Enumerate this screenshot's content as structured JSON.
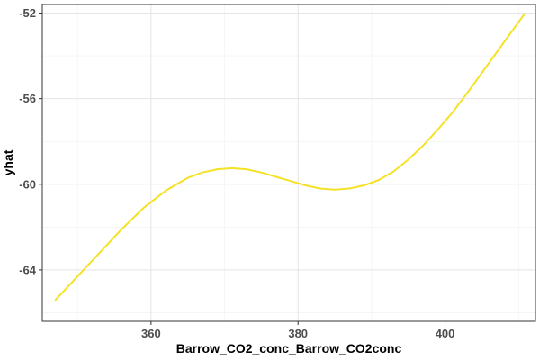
{
  "chart_data": {
    "type": "line",
    "title": "",
    "xlabel": "Barrow_CO2_conc_Barrow_CO2conc",
    "ylabel": "yhat",
    "xlim": [
      345.2,
      412.3
    ],
    "ylim": [
      -66.4,
      -51.6
    ],
    "x_ticks": [
      360,
      380,
      400
    ],
    "y_ticks": [
      -64,
      -60,
      -56,
      -52
    ],
    "x_minor_ticks": [
      350,
      370,
      390,
      410
    ],
    "y_minor_ticks": [
      -66,
      -62,
      -58,
      -54
    ],
    "grid": true,
    "line_color": "#f5e125",
    "series": [
      {
        "x": [
          347.0,
          350.0,
          353.0,
          356.0,
          359.0,
          362.0,
          365.0,
          367.0,
          369.0,
          371.0,
          373.0,
          375.0,
          377.0,
          379.0,
          381.0,
          383.0,
          385.0,
          387.0,
          389.0,
          391.0,
          393.0,
          395.0,
          397.0,
          399.0,
          401.0,
          403.0,
          405.0,
          407.0,
          409.0,
          410.8
        ],
        "y": [
          -65.4,
          -64.3,
          -63.2,
          -62.1,
          -61.1,
          -60.3,
          -59.7,
          -59.45,
          -59.3,
          -59.25,
          -59.3,
          -59.45,
          -59.65,
          -59.85,
          -60.05,
          -60.2,
          -60.25,
          -60.2,
          -60.05,
          -59.8,
          -59.4,
          -58.85,
          -58.2,
          -57.45,
          -56.65,
          -55.75,
          -54.8,
          -53.85,
          -52.9,
          -52.05
        ]
      }
    ]
  }
}
